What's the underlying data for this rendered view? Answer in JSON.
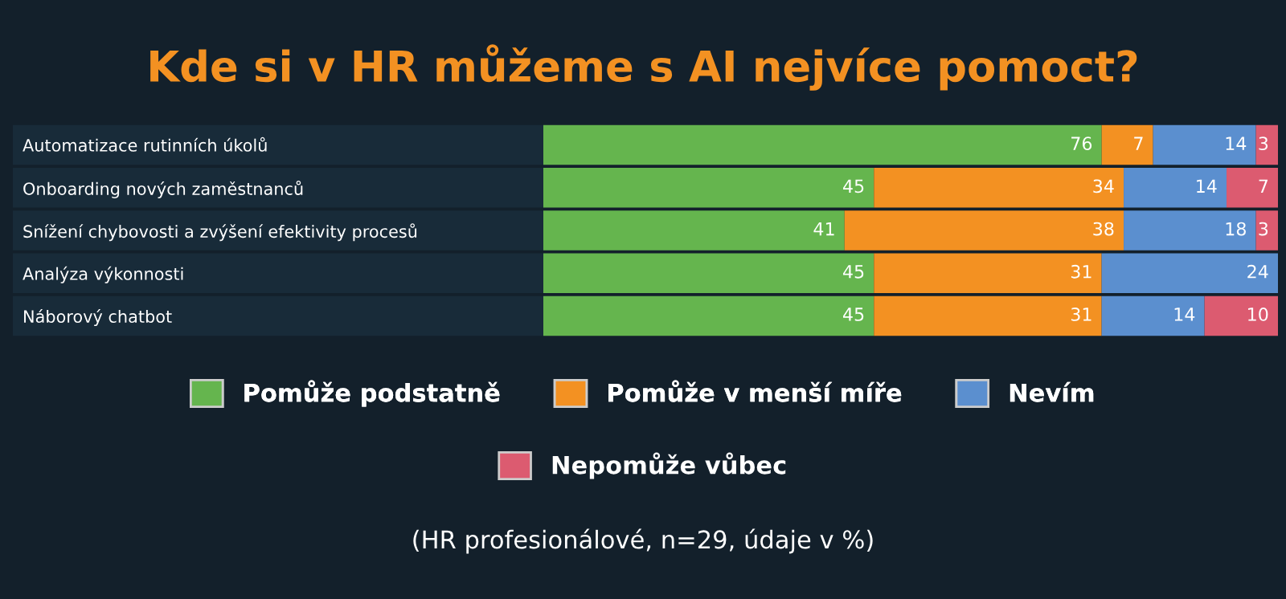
{
  "chart_data": {
    "type": "bar",
    "orientation": "horizontal",
    "stacked": true,
    "data_labels": true,
    "grid": false,
    "legend": "bottom",
    "title": "Kde si v HR můžeme s AI nejvíce pomoct?",
    "categories": [
      "Automatizace rutinních úkolů",
      "Onboarding nových zaměstnanců",
      "Snížení chybovosti a zvýšení efektivity procesů",
      "Analýza výkonnosti",
      "Náborový chatbot"
    ],
    "series": [
      {
        "name": "Pomůže podstatně",
        "color": "#65b54e",
        "values": [
          76,
          45,
          41,
          45,
          45
        ]
      },
      {
        "name": "Pomůže v menší míře",
        "color": "#f39122",
        "values": [
          7,
          34,
          38,
          31,
          31
        ]
      },
      {
        "name": "Nevím",
        "color": "#5b8fcf",
        "values": [
          14,
          14,
          18,
          24,
          14
        ]
      },
      {
        "name": "Nepomůže vůbec",
        "color": "#dc5b70",
        "values": [
          3,
          7,
          3,
          null,
          10
        ]
      }
    ],
    "annotations": [
      "(HR profesionálové, n=29, údaje v %)"
    ]
  }
}
